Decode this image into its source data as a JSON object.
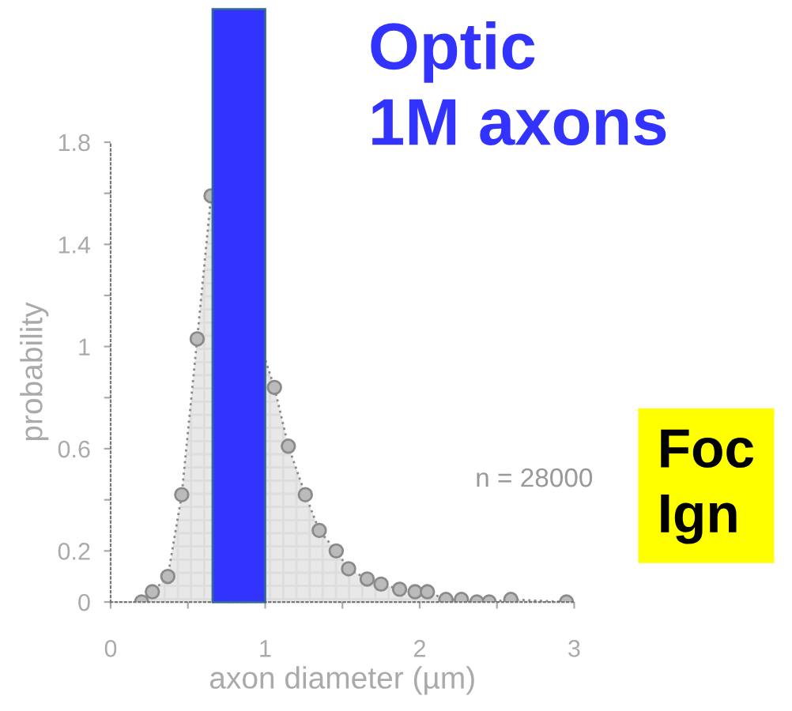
{
  "chart_data": {
    "type": "area",
    "xlabel": "axon diameter (µm)",
    "ylabel": "probability",
    "x": [
      0.2,
      0.27,
      0.37,
      0.46,
      0.56,
      0.65,
      1.06,
      1.15,
      1.26,
      1.35,
      1.46,
      1.54,
      1.66,
      1.75,
      1.87,
      1.97,
      2.05,
      2.17,
      2.27,
      2.37,
      2.45,
      2.59,
      2.95
    ],
    "series": [
      {
        "color": "#8a8a8a",
        "values": [
          0,
          0.04,
          0.1,
          0.42,
          1.03,
          1.59,
          0.84,
          0.61,
          0.42,
          0.28,
          0.2,
          0.13,
          0.09,
          0.07,
          0.05,
          0.04,
          0.04,
          0.01,
          0.01,
          0,
          0,
          0.01,
          0
        ]
      }
    ],
    "xlim": [
      0,
      3
    ],
    "ylim": [
      0,
      1.8
    ],
    "xticks": [
      0,
      {
        "value": 0.5,
        "label": null
      },
      1,
      {
        "value": 1.5,
        "label": null
      },
      2,
      {
        "value": 2.5,
        "label": null
      },
      3
    ],
    "yticks": [
      0,
      0.2,
      {
        "value": 0.4,
        "label": null
      },
      0.6,
      {
        "value": 0.8,
        "label": null
      },
      1,
      {
        "value": 1.2,
        "label": null
      },
      1.4,
      {
        "value": 1.6,
        "label": null
      },
      1.8
    ],
    "bands": [
      {
        "axis": "x",
        "from": 0.66,
        "to": 1.0,
        "color": "#3333ff"
      }
    ],
    "marker": "circle",
    "line_style": "dotted",
    "grid": false,
    "legend": false,
    "annotations": [
      "Optic\n1M axons",
      "n = 28000",
      "Foc\nIgn"
    ]
  }
}
